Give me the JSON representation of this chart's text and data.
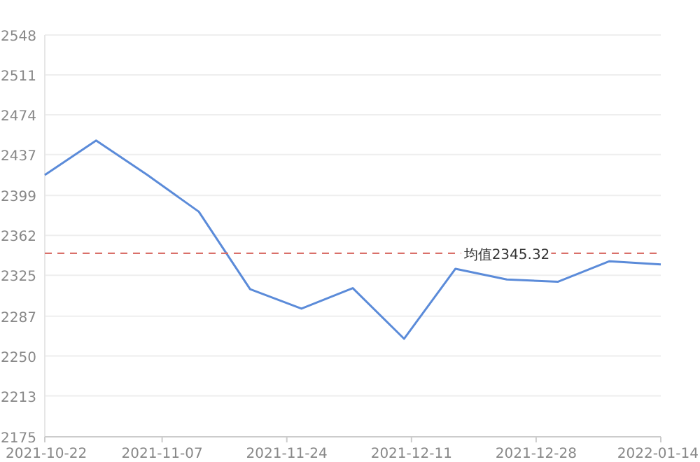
{
  "chart_data": {
    "type": "line",
    "x": [
      "2021-10-22",
      "2021-10-29",
      "2021-11-05",
      "2021-11-12",
      "2021-11-19",
      "2021-11-26",
      "2021-12-03",
      "2021-12-10",
      "2021-12-17",
      "2021-12-24",
      "2021-12-31",
      "2022-01-07",
      "2022-01-14"
    ],
    "series": [
      {
        "color": "#5b8bd9",
        "values": [
          2418,
          2450,
          2418,
          2384,
          2312,
          2294,
          2313,
          2266,
          2331,
          2321,
          2319,
          2338,
          2335
        ]
      }
    ],
    "xlim": [
      "2021-10-22",
      "2022-01-14"
    ],
    "xticks": [
      "2021-10-22",
      "2021-11-07",
      "2021-11-24",
      "2021-12-11",
      "2021-12-28",
      "2022-01-14"
    ],
    "ylim": [
      2175,
      2548
    ],
    "yticks": [
      2175,
      2213,
      2250,
      2287,
      2325,
      2362,
      2399,
      2437,
      2474,
      2511,
      2548
    ],
    "grid": "y",
    "marker": "none",
    "line_style": "solid",
    "ref_lines": [
      {
        "axis": "y",
        "value": 2345.32,
        "label": "均值2345.32",
        "color": "#d9706a",
        "line_style": "dashed"
      }
    ]
  }
}
